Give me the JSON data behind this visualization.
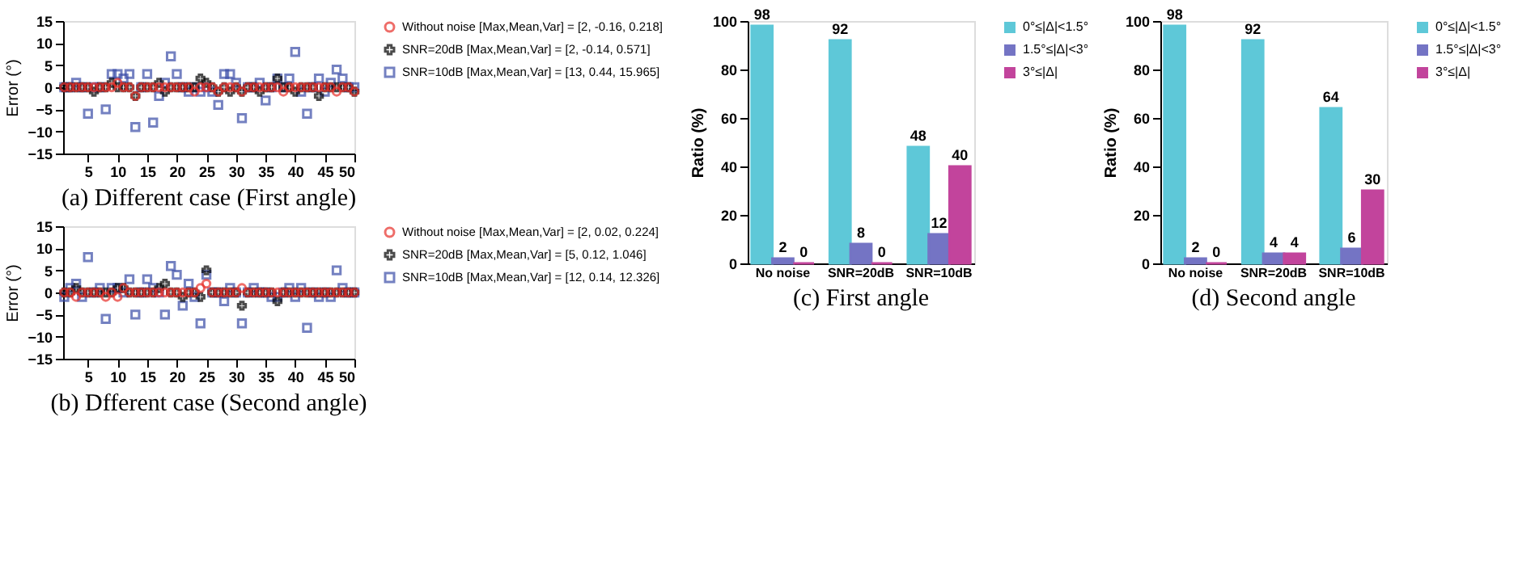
{
  "chart_data": [
    {
      "type": "scatter",
      "title": "(a)  Different case (First angle)",
      "ylabel": "Error (°)",
      "x": [
        1,
        2,
        3,
        4,
        5,
        6,
        7,
        8,
        9,
        10,
        11,
        12,
        13,
        14,
        15,
        16,
        17,
        18,
        19,
        20,
        21,
        22,
        23,
        24,
        25,
        26,
        27,
        28,
        29,
        30,
        31,
        32,
        33,
        34,
        35,
        36,
        37,
        38,
        39,
        40,
        41,
        42,
        43,
        44,
        45,
        46,
        47,
        48,
        49,
        50
      ],
      "xlim": [
        0.8,
        50
      ],
      "xticks": [
        5,
        10,
        15,
        20,
        25,
        30,
        35,
        40,
        45,
        50
      ],
      "ylim": [
        -15,
        15
      ],
      "yticks": [
        -15,
        -10,
        -5,
        0,
        5,
        10,
        15
      ],
      "grid": false,
      "legend": "right",
      "series": [
        {
          "name": "Without noise   [Max,Mean,Var] = [2,  -0.16,  0.218]",
          "color": "#e8302a",
          "marker": "circle",
          "values": [
            0,
            0,
            0,
            0,
            0,
            0,
            0,
            0,
            0,
            1,
            0,
            0,
            -2,
            0,
            0,
            0,
            0,
            0,
            0,
            0,
            0,
            0,
            -1,
            0,
            0,
            0,
            -1,
            0,
            0,
            0,
            -1,
            0,
            0,
            0,
            0,
            0,
            0,
            -1,
            0,
            0,
            0,
            0,
            0,
            0,
            0,
            0,
            -1,
            0,
            0,
            -1
          ]
        },
        {
          "name": "SNR=20dB   [Max,Mean,Var] = [2,  -0.14,  0.571]",
          "color": "#000000",
          "marker": "cross",
          "values": [
            0,
            0,
            0,
            0,
            0,
            -1,
            0,
            0,
            1,
            0,
            0,
            0,
            -2,
            0,
            0,
            0,
            1,
            -1,
            0,
            0,
            0,
            0,
            0,
            2,
            1,
            0,
            -1,
            0,
            -1,
            0,
            -1,
            0,
            0,
            -1,
            0,
            0,
            2,
            0,
            0,
            -1,
            0,
            0,
            0,
            -2,
            0,
            0,
            0,
            0,
            0,
            -1
          ]
        },
        {
          "name": "SNR=10dB   [Max,Mean,Var] = [13,  0.44,  15.965]",
          "color": "#3a4ca8",
          "marker": "square",
          "values": [
            0,
            0,
            1,
            0,
            -6,
            0,
            0,
            -5,
            3,
            3,
            2,
            3,
            -9,
            0,
            3,
            -8,
            -2,
            1,
            7,
            3,
            0,
            -1,
            0,
            -1,
            0,
            -1,
            -4,
            3,
            3,
            1,
            -7,
            0,
            0,
            1,
            -3,
            0,
            2,
            0,
            2,
            8,
            -1,
            -6,
            0,
            2,
            -1,
            1,
            4,
            2,
            0,
            0
          ]
        }
      ]
    },
    {
      "type": "scatter",
      "title": "(b) Dfferent case (Second angle)",
      "ylabel": "Error (°)",
      "x": [
        1,
        2,
        3,
        4,
        5,
        6,
        7,
        8,
        9,
        10,
        11,
        12,
        13,
        14,
        15,
        16,
        17,
        18,
        19,
        20,
        21,
        22,
        23,
        24,
        25,
        26,
        27,
        28,
        29,
        30,
        31,
        32,
        33,
        34,
        35,
        36,
        37,
        38,
        39,
        40,
        41,
        42,
        43,
        44,
        45,
        46,
        47,
        48,
        49,
        50
      ],
      "xlim": [
        0.8,
        50
      ],
      "xticks": [
        5,
        10,
        15,
        20,
        25,
        30,
        35,
        40,
        45,
        50
      ],
      "ylim": [
        -15,
        15
      ],
      "yticks": [
        -15,
        -10,
        -5,
        0,
        5,
        10,
        15
      ],
      "grid": false,
      "legend": "right",
      "series": [
        {
          "name": "Without noise   [Max,Mean,Var] = [2,  0.02,  0.224]",
          "color": "#e8302a",
          "marker": "circle",
          "values": [
            0,
            0,
            -1,
            0,
            0,
            0,
            0,
            -1,
            0,
            -1,
            1,
            0,
            0,
            0,
            0,
            0,
            0,
            0,
            0,
            0,
            0,
            0,
            0,
            1,
            2,
            0,
            0,
            0,
            0,
            0,
            1,
            0,
            0,
            0,
            0,
            0,
            0,
            0,
            0,
            0,
            0,
            0,
            0,
            0,
            0,
            0,
            0,
            0,
            0,
            0
          ]
        },
        {
          "name": "SNR=20dB   [Max,Mean,Var] = [5,  0.12,  1.046]",
          "color": "#000000",
          "marker": "cross",
          "values": [
            0,
            0,
            1,
            0,
            0,
            0,
            0,
            0,
            0,
            1,
            1,
            0,
            0,
            0,
            0,
            0,
            1,
            2,
            0,
            0,
            -1,
            0,
            0,
            -1,
            5,
            0,
            0,
            0,
            0,
            0,
            -3,
            0,
            0,
            0,
            0,
            0,
            -2,
            0,
            0,
            0,
            0,
            0,
            0,
            0,
            0,
            0,
            0,
            0,
            0,
            0
          ]
        },
        {
          "name": "SNR=10dB   [Max,Mean,Var] = [12,  0.14,  12.326]",
          "color": "#3a4ca8",
          "marker": "square",
          "values": [
            -1,
            1,
            2,
            -1,
            8,
            0,
            1,
            -6,
            1,
            1,
            0,
            3,
            -5,
            0,
            3,
            1,
            0,
            -5,
            6,
            4,
            -3,
            2,
            -1,
            -7,
            4,
            0,
            0,
            -2,
            1,
            0,
            -7,
            0,
            1,
            0,
            0,
            -1,
            -1,
            0,
            1,
            -1,
            1,
            -8,
            0,
            -1,
            0,
            -1,
            5,
            1,
            0,
            0
          ]
        }
      ]
    },
    {
      "type": "bar",
      "title": "(c) First angle",
      "ylabel": "Ratio (%)",
      "categories": [
        "No noise",
        "SNR=20dB",
        "SNR=10dB"
      ],
      "ylim": [
        0,
        100
      ],
      "yticks": [
        0,
        20,
        40,
        60,
        80,
        100
      ],
      "grid": false,
      "legend": "top right",
      "data_labels": true,
      "series": [
        {
          "name": "0°≤|Δ|<1.5°",
          "color": "#5ec8d8",
          "values": [
            98,
            92,
            48
          ]
        },
        {
          "name": "1.5°≤|Δ|<3°",
          "color": "#7474c4",
          "values": [
            2,
            8,
            12
          ]
        },
        {
          "name": "3°≤|Δ|",
          "color": "#c2449c",
          "values": [
            0,
            0,
            40
          ]
        }
      ]
    },
    {
      "type": "bar",
      "title": "(d) Second angle",
      "ylabel": "Ratio (%)",
      "categories": [
        "No noise",
        "SNR=20dB",
        "SNR=10dB"
      ],
      "ylim": [
        0,
        100
      ],
      "yticks": [
        0,
        20,
        40,
        60,
        80,
        100
      ],
      "grid": false,
      "legend": "top right",
      "data_labels": true,
      "series": [
        {
          "name": "0°≤|Δ|<1.5°",
          "color": "#5ec8d8",
          "values": [
            98,
            92,
            64
          ]
        },
        {
          "name": "1.5°≤|Δ|<3°",
          "color": "#7474c4",
          "values": [
            2,
            4,
            6
          ]
        },
        {
          "name": "3°≤|Δ|",
          "color": "#c2449c",
          "values": [
            0,
            4,
            30
          ]
        }
      ]
    }
  ]
}
